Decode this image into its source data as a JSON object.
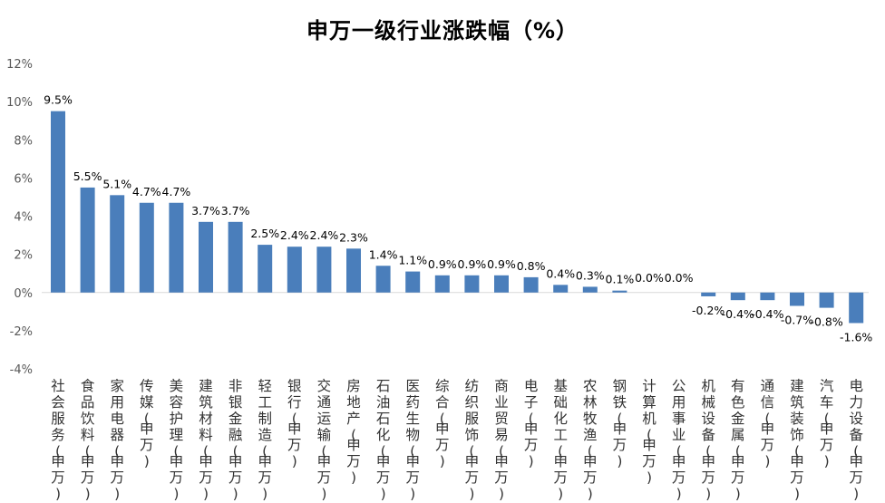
{
  "chart_data": {
    "type": "bar",
    "title": "申万一级行业涨跌幅（%）",
    "xlabel": "",
    "ylabel": "",
    "ylim": [
      -4,
      12
    ],
    "yticks": [
      "12%",
      "10%",
      "8%",
      "6%",
      "4%",
      "2%",
      "0%",
      "-2%",
      "-4%"
    ],
    "ytick_values": [
      12,
      10,
      8,
      6,
      4,
      2,
      0,
      -2,
      -4
    ],
    "grid": false,
    "bar_color": "#4A7EBB",
    "categories": [
      "社会服务(申万)",
      "食品饮料(申万)",
      "家用电器(申万)",
      "传媒(申万)",
      "美容护理(申万)",
      "建筑材料(申万)",
      "非银金融(申万)",
      "轻工制造(申万)",
      "银行(申万)",
      "交通运输(申万)",
      "房地产(申万)",
      "石油石化(申万)",
      "医药生物(申万)",
      "综合(申万)",
      "纺织服饰(申万)",
      "商业贸易(申万)",
      "电子(申万)",
      "基础化工(申万)",
      "农林牧渔(申万)",
      "钢铁(申万)",
      "计算机(申万)",
      "公用事业(申万)",
      "机械设备(申万)",
      "有色金属(申万)",
      "通信(申万)",
      "建筑装饰(申万)",
      "汽车(申万)",
      "电力设备(申万)"
    ],
    "values": [
      9.5,
      5.5,
      5.1,
      4.7,
      4.7,
      3.7,
      3.7,
      2.5,
      2.4,
      2.4,
      2.3,
      1.4,
      1.1,
      0.9,
      0.9,
      0.9,
      0.8,
      0.4,
      0.3,
      0.1,
      0.0,
      0.0,
      -0.2,
      -0.4,
      -0.4,
      -0.7,
      -0.8,
      -1.6
    ],
    "data_labels": [
      "9.5%",
      "5.5%",
      "5.1%",
      "4.7%",
      "4.7%",
      "3.7%",
      "3.7%",
      "2.5%",
      "2.4%",
      "2.4%",
      "2.3%",
      "1.4%",
      "1.1%",
      "0.9%",
      "0.9%",
      "0.9%",
      "0.8%",
      "0.4%",
      "0.3%",
      "0.1%",
      "0.0%",
      "0.0%",
      "-0.2%",
      "-0.4%",
      "-0.4%",
      "-0.7%",
      "-0.8%",
      "-1.6%"
    ]
  }
}
